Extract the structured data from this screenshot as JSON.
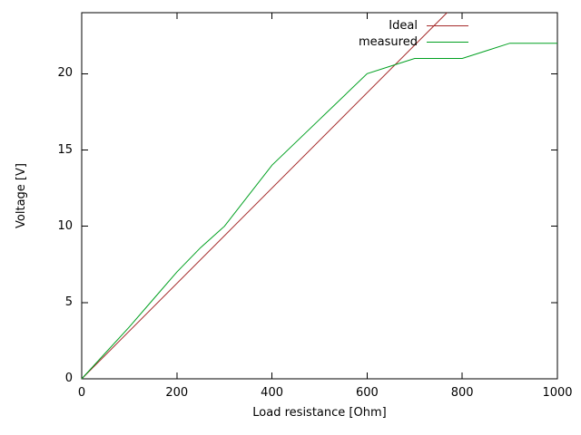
{
  "chart_data": {
    "type": "line",
    "title": "",
    "xlabel": "Load resistance [Ohm]",
    "ylabel": "Voltage [V]",
    "xlim": [
      0,
      1000
    ],
    "ylim": [
      0,
      24
    ],
    "xticks": [
      0,
      200,
      400,
      600,
      800,
      1000
    ],
    "yticks": [
      0,
      5,
      10,
      15,
      20
    ],
    "grid": false,
    "legend_position": "top-right-inside",
    "background_color": "#ffffff",
    "axis_color": "#000000",
    "series": [
      {
        "name": "Ideal",
        "color": "#a52a2a",
        "x": [
          0,
          768
        ],
        "y": [
          0,
          24
        ]
      },
      {
        "name": "measured",
        "color": "#00a020",
        "x": [
          0,
          50,
          100,
          150,
          200,
          250,
          300,
          400,
          500,
          600,
          650,
          700,
          800,
          850,
          900,
          1000
        ],
        "y": [
          0,
          1.7,
          3.4,
          5.2,
          7,
          8.6,
          10,
          14,
          17,
          20,
          20.5,
          21,
          21,
          21.5,
          22,
          22
        ]
      }
    ]
  }
}
